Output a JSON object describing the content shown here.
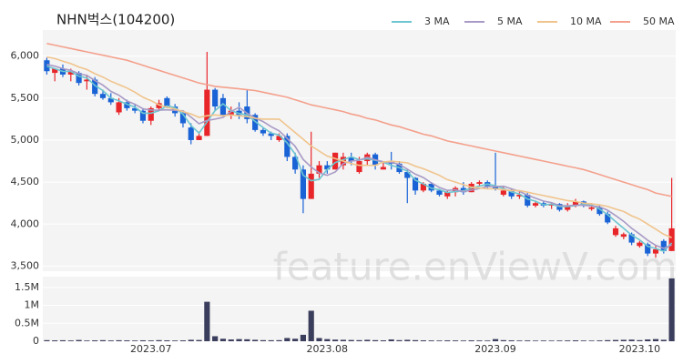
{
  "chart_data": [
    {
      "type": "candlestick",
      "title": "NHN벅스(104200)",
      "watermark": "feature.enViewV.com",
      "open": [
        5950,
        5800,
        5850,
        5780,
        5800,
        5700,
        5720,
        5550,
        5500,
        5330,
        5450,
        5380,
        5350,
        5230,
        5380,
        5500,
        5400,
        5320,
        5150,
        5000,
        5050,
        5600,
        5500,
        5300,
        5350,
        5400,
        5300,
        5120,
        5080,
        5000,
        5050,
        4800,
        4650,
        4300,
        4600,
        4700,
        4650,
        4700,
        4800,
        4620,
        4750,
        4830,
        4650,
        4750,
        4720,
        4620,
        4550,
        4400,
        4480,
        4400,
        4330,
        4380,
        4430,
        4380,
        4480,
        4500,
        4450,
        4350,
        4400,
        4330,
        4350,
        4220,
        4250,
        4220,
        4240,
        4170,
        4220,
        4270,
        4180,
        4200,
        4120,
        3870,
        3850,
        3880,
        3740,
        3760,
        3650,
        3800,
        3680
      ],
      "high": [
        5980,
        5850,
        5900,
        5850,
        5820,
        5780,
        5750,
        5600,
        5560,
        5500,
        5480,
        5420,
        5380,
        5400,
        5480,
        5520,
        5430,
        5350,
        5200,
        5100,
        6050,
        5620,
        5550,
        5400,
        5450,
        5600,
        5320,
        5150,
        5100,
        5080,
        5080,
        4850,
        4700,
        5100,
        4750,
        4750,
        4850,
        4850,
        4850,
        4800,
        4850,
        4850,
        4750,
        4860,
        4750,
        4650,
        4560,
        4500,
        4500,
        4420,
        4400,
        4450,
        4500,
        4500,
        4520,
        4520,
        4850,
        4450,
        4420,
        4380,
        4370,
        4280,
        4280,
        4260,
        4250,
        4250,
        4300,
        4280,
        4250,
        4220,
        4150,
        3980,
        3900,
        3900,
        3800,
        3780,
        3750,
        3820,
        4550
      ],
      "low": [
        5780,
        5700,
        5750,
        5700,
        5650,
        5600,
        5520,
        5480,
        5420,
        5300,
        5350,
        5320,
        5200,
        5180,
        5350,
        5380,
        5280,
        5150,
        4950,
        5000,
        5050,
        5350,
        5280,
        5250,
        5250,
        5200,
        5100,
        5050,
        5000,
        4980,
        4750,
        4600,
        4130,
        4300,
        4550,
        4600,
        4650,
        4650,
        4700,
        4600,
        4700,
        4650,
        4650,
        4650,
        4600,
        4250,
        4350,
        4380,
        4380,
        4330,
        4300,
        4330,
        4350,
        4380,
        4450,
        4430,
        4400,
        4330,
        4300,
        4300,
        4200,
        4200,
        4200,
        4180,
        4150,
        4150,
        4200,
        4200,
        4160,
        4100,
        4000,
        3850,
        3820,
        3750,
        3720,
        3620,
        3600,
        3650,
        3680
      ],
      "close": [
        5820,
        5850,
        5780,
        5820,
        5680,
        5720,
        5550,
        5500,
        5450,
        5450,
        5380,
        5350,
        5230,
        5380,
        5440,
        5400,
        5320,
        5200,
        5000,
        5050,
        5600,
        5400,
        5300,
        5350,
        5300,
        5250,
        5120,
        5080,
        5050,
        5050,
        4800,
        4650,
        4300,
        4600,
        4700,
        4650,
        4850,
        4800,
        4750,
        4750,
        4830,
        4700,
        4680,
        4720,
        4620,
        4550,
        4400,
        4480,
        4400,
        4350,
        4380,
        4430,
        4380,
        4480,
        4500,
        4450,
        4420,
        4400,
        4330,
        4350,
        4220,
        4250,
        4220,
        4240,
        4170,
        4220,
        4270,
        4220,
        4200,
        4120,
        4020,
        3950,
        3880,
        3780,
        3780,
        3650,
        3700,
        3680,
        3950
      ],
      "up_color": "#e8262a",
      "down_color": "#1a63d6",
      "series": [
        {
          "name": "3 MA",
          "color": "#6cc5d0",
          "values": [
            5880,
            5850,
            5817,
            5817,
            5760,
            5740,
            5650,
            5590,
            5500,
            5467,
            5427,
            5393,
            5320,
            5320,
            5350,
            5407,
            5387,
            5307,
            5173,
            5083,
            5217,
            5350,
            5433,
            5350,
            5317,
            5300,
            5223,
            5150,
            5083,
            5060,
            4967,
            4833,
            4583,
            4517,
            4533,
            4650,
            4733,
            4767,
            4800,
            4767,
            4777,
            4760,
            4737,
            4700,
            4673,
            4630,
            4523,
            4477,
            4427,
            4410,
            4377,
            4387,
            4397,
            4430,
            4453,
            4477,
            4457,
            4423,
            4383,
            4360,
            4300,
            4273,
            4230,
            4237,
            4210,
            4210,
            4220,
            4237,
            4230,
            4180,
            4113,
            4030,
            3950,
            3870,
            3813,
            3737,
            3710,
            3677,
            3777
          ]
        },
        {
          "name": "5 MA",
          "color": "#a89ac6",
          "values": [
            5900,
            5880,
            5850,
            5830,
            5790,
            5770,
            5710,
            5654,
            5580,
            5534,
            5466,
            5426,
            5372,
            5358,
            5356,
            5360,
            5354,
            5348,
            5272,
            5194,
            5234,
            5250,
            5270,
            5340,
            5390,
            5320,
            5264,
            5220,
            5160,
            5110,
            5020,
            4926,
            4770,
            4680,
            4610,
            4580,
            4620,
            4720,
            4750,
            4760,
            4796,
            4766,
            4742,
            4736,
            4710,
            4654,
            4594,
            4554,
            4490,
            4436,
            4402,
            4408,
            4388,
            4404,
            4424,
            4448,
            4446,
            4450,
            4420,
            4390,
            4344,
            4310,
            4274,
            4256,
            4220,
            4220,
            4224,
            4224,
            4216,
            4206,
            4166,
            4102,
            4034,
            3950,
            3882,
            3808,
            3748,
            3712,
            3752
          ]
        },
        {
          "name": "10 MA",
          "color": "#f0c48c",
          "values": [
            5990,
            5970,
            5940,
            5910,
            5870,
            5840,
            5790,
            5750,
            5700,
            5660,
            5620,
            5570,
            5510,
            5470,
            5420,
            5390,
            5370,
            5340,
            5310,
            5270,
            5290,
            5300,
            5290,
            5300,
            5290,
            5280,
            5260,
            5250,
            5250,
            5250,
            5170,
            5090,
            5010,
            4930,
            4870,
            4810,
            4780,
            4750,
            4720,
            4700,
            4700,
            4700,
            4740,
            4750,
            4740,
            4730,
            4690,
            4660,
            4620,
            4580,
            4530,
            4500,
            4470,
            4440,
            4430,
            4420,
            4420,
            4410,
            4400,
            4400,
            4380,
            4360,
            4340,
            4320,
            4300,
            4280,
            4270,
            4250,
            4240,
            4230,
            4210,
            4180,
            4150,
            4100,
            4060,
            4000,
            3940,
            3880,
            3840
          ]
        },
        {
          "name": "50 MA",
          "color": "#f4a08c",
          "values": [
            6150,
            6130,
            6110,
            6090,
            6070,
            6050,
            6030,
            6010,
            5990,
            5970,
            5950,
            5920,
            5890,
            5860,
            5830,
            5800,
            5770,
            5740,
            5710,
            5680,
            5660,
            5640,
            5630,
            5620,
            5610,
            5600,
            5590,
            5570,
            5550,
            5530,
            5510,
            5480,
            5450,
            5420,
            5400,
            5380,
            5360,
            5340,
            5310,
            5290,
            5260,
            5240,
            5210,
            5180,
            5160,
            5130,
            5100,
            5070,
            5050,
            5020,
            4990,
            4970,
            4950,
            4930,
            4910,
            4890,
            4870,
            4850,
            4830,
            4810,
            4790,
            4770,
            4750,
            4730,
            4710,
            4690,
            4670,
            4650,
            4620,
            4590,
            4560,
            4530,
            4500,
            4470,
            4440,
            4410,
            4370,
            4350,
            4330
          ]
        }
      ],
      "ylim": [
        3440,
        6310
      ],
      "yticks": [
        {
          "value": 3500,
          "label": "3,500"
        },
        {
          "value": 4000,
          "label": "4,000"
        },
        {
          "value": 4500,
          "label": "4,500"
        },
        {
          "value": 5000,
          "label": "5,000"
        },
        {
          "value": 5500,
          "label": "5,500"
        },
        {
          "value": 6000,
          "label": "6,000"
        }
      ],
      "grid": true
    },
    {
      "type": "bar",
      "color": "#3b3d5c",
      "categories": [
        null,
        null,
        null,
        null,
        null,
        null,
        null,
        null,
        null,
        null,
        null,
        null,
        null,
        "2023.07",
        null,
        null,
        null,
        null,
        null,
        null,
        null,
        null,
        null,
        null,
        null,
        null,
        null,
        null,
        null,
        null,
        null,
        null,
        null,
        null,
        null,
        "2023.08",
        null,
        null,
        null,
        null,
        null,
        null,
        null,
        null,
        null,
        null,
        null,
        null,
        null,
        null,
        null,
        null,
        null,
        null,
        null,
        null,
        "2023.09",
        null,
        null,
        null,
        null,
        null,
        null,
        null,
        null,
        null,
        null,
        null,
        null,
        null,
        null,
        null,
        null,
        null,
        "2023.10",
        null,
        null,
        null,
        null
      ],
      "values": [
        30000,
        25000,
        28000,
        22000,
        35000,
        20000,
        25000,
        30000,
        22000,
        28000,
        24000,
        20000,
        26000,
        22000,
        30000,
        25000,
        20000,
        24000,
        40000,
        35000,
        1100000,
        140000,
        70000,
        50000,
        60000,
        55000,
        40000,
        30000,
        28000,
        30000,
        90000,
        70000,
        180000,
        850000,
        90000,
        60000,
        45000,
        40000,
        35000,
        30000,
        40000,
        30000,
        25000,
        50000,
        30000,
        40000,
        30000,
        25000,
        22000,
        20000,
        24000,
        22000,
        20000,
        25000,
        22000,
        20000,
        60000,
        30000,
        25000,
        20000,
        22000,
        18000,
        20000,
        18000,
        20000,
        22000,
        25000,
        20000,
        18000,
        22000,
        30000,
        35000,
        40000,
        45000,
        30000,
        50000,
        60000,
        40000,
        1750000
      ],
      "ylim": [
        0,
        1800000
      ],
      "yticks": [
        0,
        {
          "value": 500000,
          "label": "0.5M"
        },
        {
          "value": 1000000,
          "label": "1M"
        },
        {
          "value": 1500000,
          "label": "1.5M"
        }
      ]
    }
  ]
}
